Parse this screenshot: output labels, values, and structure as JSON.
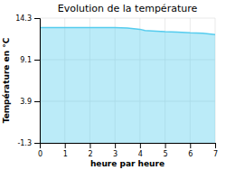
{
  "chart_data": {
    "type": "area",
    "title": "Evolution de la température",
    "xlabel": "heure par heure",
    "ylabel": "Température en °C",
    "x": [
      0,
      0.5,
      1,
      1.5,
      2,
      2.5,
      3,
      3.5,
      4,
      4.2,
      4.5,
      5,
      5.5,
      6,
      6.5,
      7
    ],
    "values": [
      13.1,
      13.1,
      13.1,
      13.1,
      13.1,
      13.1,
      13.1,
      13.05,
      12.9,
      12.75,
      12.7,
      12.6,
      12.55,
      12.45,
      12.4,
      12.25
    ],
    "color": "#55ccee",
    "xlim": [
      0,
      7
    ],
    "xticks": [
      0,
      1,
      2,
      3,
      4,
      5,
      6,
      7
    ],
    "ylim": [
      -1.3,
      14.3
    ],
    "yticks": [
      -1.3,
      3.9,
      9.1,
      14.3
    ],
    "grid": true
  }
}
